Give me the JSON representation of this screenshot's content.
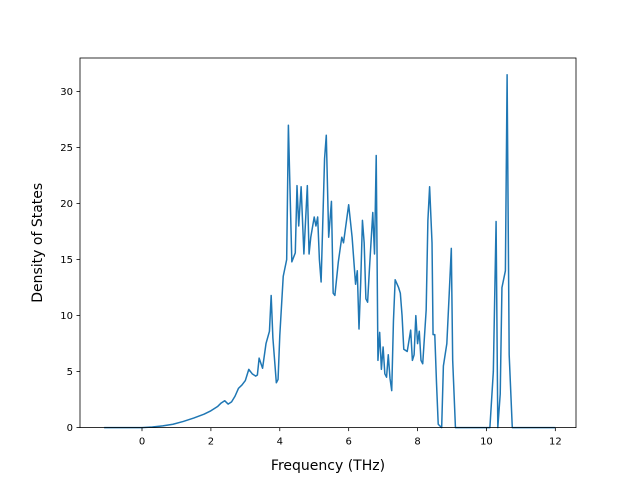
{
  "chart_data": {
    "type": "line",
    "title": "",
    "xlabel": "Frequency (THz)",
    "ylabel": "Density of States",
    "xlim": [
      -1.8,
      12.6
    ],
    "ylim": [
      0,
      33
    ],
    "xticks": [
      0,
      2,
      4,
      6,
      8,
      10,
      12
    ],
    "yticks": [
      0,
      5,
      10,
      15,
      20,
      25,
      30
    ],
    "grid": false,
    "legend": "none",
    "series": [
      {
        "color": "#1f77b4",
        "points": [
          [
            -1.1,
            0
          ],
          [
            -0.5,
            0
          ],
          [
            0,
            0
          ],
          [
            0.3,
            0.05
          ],
          [
            0.6,
            0.15
          ],
          [
            0.9,
            0.3
          ],
          [
            1.2,
            0.55
          ],
          [
            1.5,
            0.85
          ],
          [
            1.8,
            1.2
          ],
          [
            2.0,
            1.5
          ],
          [
            2.2,
            1.9
          ],
          [
            2.3,
            2.2
          ],
          [
            2.4,
            2.4
          ],
          [
            2.5,
            2.1
          ],
          [
            2.6,
            2.3
          ],
          [
            2.7,
            2.8
          ],
          [
            2.8,
            3.5
          ],
          [
            2.9,
            3.8
          ],
          [
            3.0,
            4.2
          ],
          [
            3.1,
            5.2
          ],
          [
            3.2,
            4.8
          ],
          [
            3.3,
            4.6
          ],
          [
            3.35,
            4.7
          ],
          [
            3.4,
            6.2
          ],
          [
            3.5,
            5.3
          ],
          [
            3.6,
            7.5
          ],
          [
            3.7,
            8.6
          ],
          [
            3.75,
            11.8
          ],
          [
            3.8,
            8.0
          ],
          [
            3.9,
            4.0
          ],
          [
            3.95,
            4.3
          ],
          [
            4.0,
            8.2
          ],
          [
            4.1,
            13.5
          ],
          [
            4.2,
            15.0
          ],
          [
            4.25,
            27.0
          ],
          [
            4.35,
            14.8
          ],
          [
            4.45,
            15.6
          ],
          [
            4.5,
            21.6
          ],
          [
            4.55,
            18.0
          ],
          [
            4.62,
            21.5
          ],
          [
            4.7,
            15.5
          ],
          [
            4.8,
            21.6
          ],
          [
            4.85,
            15.5
          ],
          [
            4.9,
            17.0
          ],
          [
            5.0,
            18.8
          ],
          [
            5.05,
            18.0
          ],
          [
            5.1,
            18.8
          ],
          [
            5.15,
            15.0
          ],
          [
            5.2,
            13.0
          ],
          [
            5.3,
            24.0
          ],
          [
            5.35,
            26.1
          ],
          [
            5.42,
            17.0
          ],
          [
            5.5,
            20.2
          ],
          [
            5.55,
            12.0
          ],
          [
            5.6,
            11.8
          ],
          [
            5.7,
            14.8
          ],
          [
            5.8,
            17.0
          ],
          [
            5.85,
            16.5
          ],
          [
            6.0,
            19.9
          ],
          [
            6.1,
            17.0
          ],
          [
            6.2,
            12.8
          ],
          [
            6.25,
            14.0
          ],
          [
            6.3,
            8.8
          ],
          [
            6.35,
            13.0
          ],
          [
            6.4,
            18.5
          ],
          [
            6.45,
            16.5
          ],
          [
            6.5,
            11.5
          ],
          [
            6.55,
            11.2
          ],
          [
            6.6,
            14.0
          ],
          [
            6.7,
            19.2
          ],
          [
            6.75,
            15.5
          ],
          [
            6.8,
            24.3
          ],
          [
            6.85,
            6.0
          ],
          [
            6.9,
            8.5
          ],
          [
            6.95,
            5.2
          ],
          [
            7.0,
            7.2
          ],
          [
            7.05,
            4.8
          ],
          [
            7.1,
            4.5
          ],
          [
            7.15,
            6.5
          ],
          [
            7.2,
            4.4
          ],
          [
            7.25,
            3.3
          ],
          [
            7.3,
            9.5
          ],
          [
            7.35,
            13.2
          ],
          [
            7.45,
            12.5
          ],
          [
            7.5,
            12.0
          ],
          [
            7.55,
            10.0
          ],
          [
            7.6,
            7.0
          ],
          [
            7.7,
            6.8
          ],
          [
            7.8,
            8.7
          ],
          [
            7.85,
            6.0
          ],
          [
            7.9,
            6.5
          ],
          [
            7.95,
            10.0
          ],
          [
            8.0,
            7.5
          ],
          [
            8.05,
            8.6
          ],
          [
            8.1,
            6.0
          ],
          [
            8.15,
            5.7
          ],
          [
            8.25,
            10.5
          ],
          [
            8.3,
            18.5
          ],
          [
            8.35,
            21.5
          ],
          [
            8.42,
            16.5
          ],
          [
            8.45,
            8.3
          ],
          [
            8.5,
            8.3
          ],
          [
            8.55,
            4.0
          ],
          [
            8.6,
            0.3
          ],
          [
            8.7,
            0
          ],
          [
            8.75,
            5.5
          ],
          [
            8.85,
            7.5
          ],
          [
            8.92,
            12.0
          ],
          [
            8.98,
            16.0
          ],
          [
            9.02,
            6.0
          ],
          [
            9.1,
            0
          ],
          [
            9.5,
            0
          ],
          [
            10.1,
            0
          ],
          [
            10.2,
            5.0
          ],
          [
            10.28,
            18.4
          ],
          [
            10.33,
            0
          ],
          [
            10.4,
            3.0
          ],
          [
            10.45,
            12.5
          ],
          [
            10.55,
            14.0
          ],
          [
            10.6,
            31.5
          ],
          [
            10.66,
            6.5
          ],
          [
            10.75,
            0
          ],
          [
            11.0,
            0
          ],
          [
            11.5,
            0
          ],
          [
            12.0,
            0
          ]
        ]
      }
    ]
  }
}
